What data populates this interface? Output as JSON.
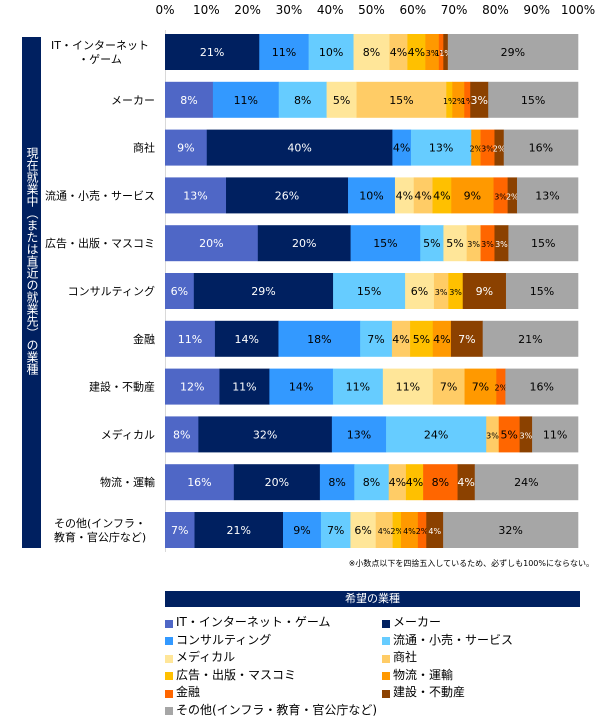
{
  "chart_data": {
    "type": "bar",
    "orientation": "horizontal",
    "stacked": true,
    "percent_stacked": true,
    "title": "",
    "xlabel": "",
    "ylabel": "現在就業中（または直近の就業先）の業種",
    "xlim": [
      0,
      100
    ],
    "x_ticks": [
      "0%",
      "10%",
      "20%",
      "30%",
      "40%",
      "50%",
      "60%",
      "70%",
      "80%",
      "90%",
      "100%"
    ],
    "grid": false,
    "legend_title": "希望の業種",
    "legend_position": "bottom",
    "note": "※小数点以下を四捨五入しているため、必ずしも100%にならない。",
    "categories": [
      "IT・インターネット・ゲーム",
      "メーカー",
      "商社",
      "流通・小売・サービス",
      "広告・出版・マスコミ",
      "コンサルティング",
      "金融",
      "建設・不動産",
      "メディカル",
      "物流・運輸",
      "その他(インフラ・教育・官公庁など)"
    ],
    "category_display": [
      [
        "IT・インターネット",
        "・ゲーム"
      ],
      [
        "メーカー"
      ],
      [
        "商社"
      ],
      [
        "流通・小売・サービス"
      ],
      [
        "広告・出版・マスコミ"
      ],
      [
        "コンサルティング"
      ],
      [
        "金融"
      ],
      [
        "建設・不動産"
      ],
      [
        "メディカル"
      ],
      [
        "物流・運輸"
      ],
      [
        "その他(インフラ・",
        "教育・官公庁など)"
      ]
    ],
    "series": [
      {
        "name": "IT・インターネット・ゲーム",
        "color": "#4F67C6",
        "label_color": "#ffffff",
        "values": [
          0,
          8,
          9,
          13,
          20,
          6,
          11,
          12,
          8,
          16,
          7
        ]
      },
      {
        "name": "メーカー",
        "color": "#002060",
        "label_color": "#ffffff",
        "values": [
          21,
          0,
          40,
          26,
          20,
          29,
          14,
          11,
          32,
          20,
          21
        ]
      },
      {
        "name": "コンサルティング",
        "color": "#3399FF",
        "label_color": "#000000",
        "values": [
          11,
          11,
          4,
          10,
          15,
          0,
          18,
          14,
          13,
          8,
          9
        ]
      },
      {
        "name": "流通・小売・サービス",
        "color": "#66CCFF",
        "label_color": "#000000",
        "values": [
          10,
          8,
          13,
          0,
          5,
          15,
          7,
          11,
          24,
          8,
          7
        ]
      },
      {
        "name": "メディカル",
        "color": "#FFE699",
        "label_color": "#000000",
        "values": [
          8,
          5,
          0,
          4,
          5,
          6,
          0,
          11,
          0,
          0,
          6
        ]
      },
      {
        "name": "商社",
        "color": "#FFCC66",
        "label_color": "#000000",
        "values": [
          4,
          15,
          0,
          4,
          3,
          3,
          4,
          7,
          3,
          4,
          4
        ]
      },
      {
        "name": "広告・出版・マスコミ",
        "color": "#FFC000",
        "label_color": "#000000",
        "values": [
          4,
          1,
          0,
          4,
          0,
          3,
          5,
          0,
          0,
          4,
          2
        ]
      },
      {
        "name": "物流・運輸",
        "color": "#FF9900",
        "label_color": "#000000",
        "values": [
          3,
          2,
          2,
          9,
          0,
          0,
          4,
          7,
          0,
          0,
          4
        ]
      },
      {
        "name": "金融",
        "color": "#FF6600",
        "label_color": "#000000",
        "values": [
          1,
          1,
          3,
          3,
          3,
          0,
          0,
          2,
          5,
          8,
          2
        ]
      },
      {
        "name": "建設・不動産",
        "color": "#8B4100",
        "label_color": "#ffffff",
        "values": [
          1,
          3,
          2,
          2,
          3,
          9,
          7,
          0,
          3,
          4,
          4
        ]
      },
      {
        "name": "その他(インフラ・教育・官公庁など)",
        "color": "#A6A6A6",
        "label_color": "#000000",
        "values": [
          29,
          15,
          16,
          13,
          15,
          15,
          21,
          16,
          11,
          24,
          32
        ]
      }
    ]
  },
  "legend_items": [
    "IT・インターネット・ゲーム",
    "メーカー",
    "コンサルティング",
    "流通・小売・サービス",
    "メディカル",
    "商社",
    "広告・出版・マスコミ",
    "物流・運輸",
    "金融",
    "建設・不動産",
    "その他(インフラ・教育・官公庁など)"
  ],
  "vertical_header": "現在就業中（または直近の就業先）の業種"
}
